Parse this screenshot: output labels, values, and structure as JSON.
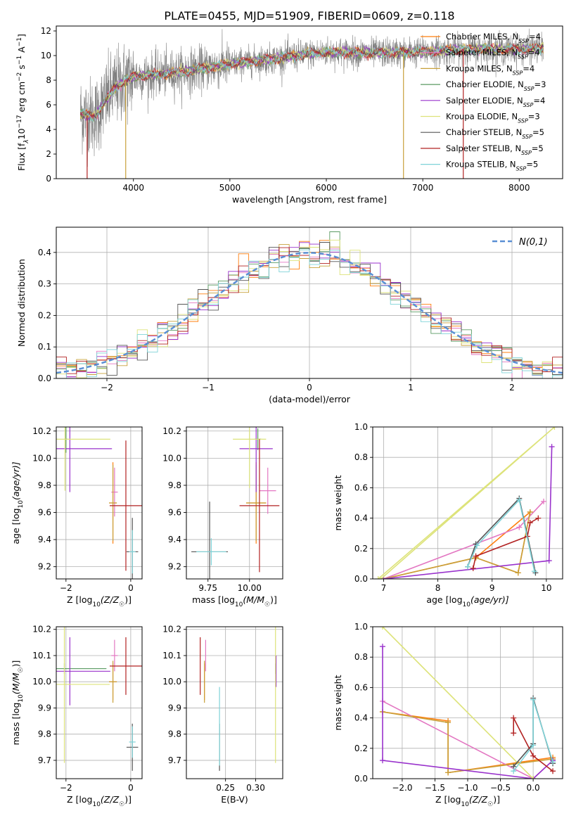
{
  "title": "PLATE=0455, MJD=51909, FIBERID=0609, z=0.118",
  "colors": {
    "axis": "#000000",
    "grid": "#b0b0b0",
    "noise": "#808080",
    "gauss": "#5a8fd4"
  },
  "models": [
    {
      "name": "Chabrier MILES, N$_{SSP}$=4",
      "label_main": "Chabrier MILES, N",
      "label_sub": "SSP",
      "label_tail": "=4",
      "color": "#ff7f0e"
    },
    {
      "name": "Salpeter MILES, N$_{SSP}$=4",
      "label_main": "Salpeter MILES, N",
      "label_sub": "SSP",
      "label_tail": "=4",
      "color": "#e377c2"
    },
    {
      "name": "Kroupa MILES, N$_{SSP}$=4",
      "label_main": "Kroupa MILES, N",
      "label_sub": "SSP",
      "label_tail": "=4",
      "color": "#c8a03a"
    },
    {
      "name": "Chabrier ELODIE, N$_{SSP}$=3",
      "label_main": "Chabrier ELODIE, N",
      "label_sub": "SSP",
      "label_tail": "=3",
      "color": "#5a9a62"
    },
    {
      "name": "Salpeter ELODIE, N$_{SSP}$=4",
      "label_main": "Salpeter ELODIE, N",
      "label_sub": "SSP",
      "label_tail": "=4",
      "color": "#9932cc"
    },
    {
      "name": "Kroupa ELODIE, N$_{SSP}$=3",
      "label_main": "Kroupa ELODIE, N",
      "label_sub": "SSP",
      "label_tail": "=3",
      "color": "#dde37a"
    },
    {
      "name": "Chabrier STELIB, N$_{SSP}$=5",
      "label_main": "Chabrier STELIB, N",
      "label_sub": "SSP",
      "label_tail": "=5",
      "color": "#555555"
    },
    {
      "name": "Salpeter STELIB, N$_{SSP}$=5",
      "label_main": "Salpeter STELIB, N",
      "label_sub": "SSP",
      "label_tail": "=5",
      "color": "#b22222"
    },
    {
      "name": "Kroupa STELIB, N$_{SSP}$=5",
      "label_main": "Kroupa STELIB, N",
      "label_sub": "SSP",
      "label_tail": "=5",
      "color": "#7fd3d8"
    }
  ],
  "chart_data": [
    {
      "id": "spectrum",
      "type": "line",
      "xlabel": "wavelength [Angstrom, rest frame]",
      "ylabel_main": "Flux [f",
      "ylabel_sub": "λ",
      "ylabel_mid": "10",
      "ylabel_exp": "−17",
      "ylabel_tail": " erg cm",
      "ylabel_exp2": "−2",
      "ylabel_tail2": " s",
      "ylabel_exp3": "−1",
      "ylabel_tail3": " A",
      "ylabel_exp4": "−1",
      "ylabel_end": "]",
      "xlim": [
        3200,
        8450
      ],
      "ylim": [
        0,
        12.4
      ],
      "xticks": [
        4000,
        5000,
        6000,
        7000,
        8000
      ],
      "xtick_labels": [
        "4000",
        "5000",
        "6000",
        "7000",
        "8000"
      ],
      "yticks": [
        0,
        2,
        4,
        6,
        8,
        10,
        12
      ],
      "ytick_labels": [
        "0",
        "2",
        "4",
        "6",
        "8",
        "10",
        "12"
      ],
      "continuum": [
        [
          3450,
          5.3
        ],
        [
          3600,
          5.0
        ],
        [
          3700,
          6.2
        ],
        [
          3800,
          7.3
        ],
        [
          3900,
          7.9
        ],
        [
          4000,
          8.3
        ],
        [
          4300,
          8.5
        ],
        [
          4600,
          8.8
        ],
        [
          5000,
          9.3
        ],
        [
          5500,
          9.8
        ],
        [
          6000,
          10.3
        ],
        [
          6500,
          10.2
        ],
        [
          7000,
          10.3
        ],
        [
          7500,
          10.5
        ],
        [
          8000,
          10.5
        ],
        [
          8250,
          10.6
        ]
      ],
      "spikes": [
        3520,
        3920,
        6800,
        7420
      ],
      "legend_loc": "upper right"
    },
    {
      "id": "residuals",
      "type": "histogram",
      "xlabel": "(data-model)/error",
      "ylabel": "Normed distribution",
      "xlim": [
        -2.5,
        2.5
      ],
      "ylim": [
        0,
        0.48
      ],
      "xticks": [
        -2,
        -1,
        0,
        1,
        2
      ],
      "xtick_labels": [
        "−2",
        "−1",
        "0",
        "1",
        "2"
      ],
      "yticks": [
        0.0,
        0.1,
        0.2,
        0.3,
        0.4
      ],
      "ytick_labels": [
        "0.0",
        "0.1",
        "0.2",
        "0.3",
        "0.4"
      ],
      "bin_width": 0.1,
      "legend_label": "N(0,1)",
      "legend_loc": "upper right",
      "grid": true
    },
    {
      "id": "age_vs_z",
      "type": "errorbar",
      "xlabel_main": "Z [log",
      "xlabel_sub": "10",
      "xlabel_tail": "(Z/Z",
      "xlabel_sub2": "☉",
      "xlabel_end": ")]",
      "ylabel_main": "age  [log",
      "ylabel_sub": "10",
      "ylabel_tail": "(age/yr)]",
      "xlim": [
        -2.3,
        0.35
      ],
      "ylim": [
        9.11,
        10.23
      ],
      "xticks": [
        -2,
        0
      ],
      "xtick_labels": [
        "−2",
        "0"
      ],
      "yticks": [
        9.2,
        9.4,
        9.6,
        9.8,
        10.0,
        10.2
      ],
      "ytick_labels": [
        "9.2",
        "9.4",
        "9.6",
        "9.8",
        "10.0",
        "10.2"
      ],
      "points": [
        {
          "m": 0,
          "x": -0.55,
          "y": 9.67,
          "xerr": 0.12,
          "yerr": 0.3
        },
        {
          "m": 1,
          "x": -0.5,
          "y": 9.75,
          "xerr": 0.1,
          "yerr": 0.18
        },
        {
          "m": 2,
          "x": -0.55,
          "y": 9.67,
          "xerr": 0.12,
          "yerr": 0.28
        },
        {
          "m": 3,
          "x": -2.0,
          "y": 10.14,
          "xerr": 0.05,
          "yerr": 0.1
        },
        {
          "m": 4,
          "x": -1.88,
          "y": 10.07,
          "xerr": 1.3,
          "yerr": 0.32
        },
        {
          "m": 5,
          "x": -2.03,
          "y": 10.14,
          "xerr": 1.4,
          "yerr": 0.38
        },
        {
          "m": 6,
          "x": 0.05,
          "y": 9.31,
          "xerr": 0.18,
          "yerr": 0.25
        },
        {
          "m": 7,
          "x": -0.15,
          "y": 9.65,
          "xerr": 0.5,
          "yerr": 0.48
        },
        {
          "m": 8,
          "x": 0.05,
          "y": 9.31,
          "xerr": 0.1,
          "yerr": 0.16
        }
      ],
      "grid": true
    },
    {
      "id": "age_vs_mass",
      "type": "errorbar",
      "xlabel_main": "mass [log",
      "xlabel_sub": "10",
      "xlabel_tail": "(M/M",
      "xlabel_sub2": "☉",
      "xlabel_end": ")]",
      "ylabel_main": "",
      "xlim": [
        9.62,
        10.2
      ],
      "ylim": [
        9.11,
        10.23
      ],
      "xticks": [
        9.75,
        10.0
      ],
      "xtick_labels": [
        "9.75",
        "10.00"
      ],
      "yticks": [
        9.2,
        9.4,
        9.6,
        9.8,
        10.0,
        10.2
      ],
      "ytick_labels": [
        "9.2",
        "9.4",
        "9.6",
        "9.8",
        "10.0",
        "10.2"
      ],
      "points": [
        {
          "m": 0,
          "x": 10.04,
          "y": 9.67,
          "xerr": 0.06,
          "yerr": 0.3
        },
        {
          "m": 1,
          "x": 10.11,
          "y": 9.76,
          "xerr": 0.05,
          "yerr": 0.17
        },
        {
          "m": 2,
          "x": 10.04,
          "y": 9.67,
          "xerr": 0.06,
          "yerr": 0.28
        },
        {
          "m": 3,
          "x": 10.05,
          "y": 10.14,
          "xerr": 0.02,
          "yerr": 0.08
        },
        {
          "m": 4,
          "x": 10.04,
          "y": 10.07,
          "xerr": 0.1,
          "yerr": 0.32
        },
        {
          "m": 5,
          "x": 10.0,
          "y": 10.14,
          "xerr": 0.1,
          "yerr": 0.36
        },
        {
          "m": 6,
          "x": 9.76,
          "y": 9.31,
          "xerr": 0.11,
          "yerr": 0.37
        },
        {
          "m": 7,
          "x": 10.06,
          "y": 9.65,
          "xerr": 0.12,
          "yerr": 0.49
        },
        {
          "m": 8,
          "x": 9.77,
          "y": 9.31,
          "xerr": 0.09,
          "yerr": 0.1
        }
      ],
      "grid": true
    },
    {
      "id": "weight_vs_age",
      "type": "line",
      "xlabel_main": "age  [log",
      "xlabel_sub": "10",
      "xlabel_tail": "(age/yr)]",
      "ylabel": "mass weight",
      "xlim": [
        6.8,
        10.3
      ],
      "ylim": [
        0,
        1.0
      ],
      "xticks": [
        7,
        8,
        9,
        10
      ],
      "xtick_labels": [
        "7",
        "8",
        "9",
        "10"
      ],
      "yticks": [
        0.0,
        0.2,
        0.4,
        0.6,
        0.8,
        1.0
      ],
      "ytick_labels": [
        "0.0",
        "0.2",
        "0.4",
        "0.6",
        "0.8",
        "1.0"
      ],
      "series": [
        {
          "m": 0,
          "points": [
            [
              7.0,
              0.0
            ],
            [
              8.7,
              0.14
            ],
            [
              9.48,
              0.04
            ],
            [
              9.7,
              0.44
            ],
            [
              8.7,
              0.14
            ]
          ]
        },
        {
          "m": 1,
          "points": [
            [
              7.0,
              0.0
            ],
            [
              9.5,
              0.34
            ],
            [
              9.95,
              0.51
            ]
          ]
        },
        {
          "m": 2,
          "points": [
            [
              7.0,
              0.0
            ],
            [
              8.7,
              0.14
            ],
            [
              9.48,
              0.04
            ],
            [
              9.7,
              0.44
            ]
          ]
        },
        {
          "m": 4,
          "points": [
            [
              7.0,
              0.0
            ],
            [
              10.05,
              0.12
            ],
            [
              10.1,
              0.87
            ]
          ]
        },
        {
          "m": 5,
          "points": [
            [
              6.95,
              0.0
            ],
            [
              10.15,
              1.0
            ],
            [
              6.9,
              0.0
            ]
          ]
        },
        {
          "m": 6,
          "points": [
            [
              8.55,
              0.08
            ],
            [
              8.7,
              0.23
            ],
            [
              9.5,
              0.53
            ],
            [
              9.8,
              0.04
            ]
          ]
        },
        {
          "m": 7,
          "points": [
            [
              8.65,
              0.07
            ],
            [
              8.7,
              0.15
            ],
            [
              9.65,
              0.28
            ],
            [
              9.7,
              0.37
            ],
            [
              9.85,
              0.4
            ]
          ]
        },
        {
          "m": 8,
          "points": [
            [
              8.55,
              0.08
            ],
            [
              8.72,
              0.22
            ],
            [
              9.5,
              0.52
            ],
            [
              9.78,
              0.05
            ]
          ]
        }
      ],
      "grid": true
    },
    {
      "id": "mass_vs_z",
      "type": "errorbar",
      "xlabel_main": "Z [log",
      "xlabel_sub": "10",
      "xlabel_tail": "(Z/Z",
      "xlabel_sub2": "☉",
      "xlabel_end": ")]",
      "ylabel_main": "mass [log",
      "ylabel_sub": "10",
      "ylabel_tail": "(M/M",
      "ylabel_sub2": "☉",
      "ylabel_end": ")]",
      "xlim": [
        -2.3,
        0.35
      ],
      "ylim": [
        9.63,
        10.21
      ],
      "xticks": [
        -2,
        0
      ],
      "xtick_labels": [
        "−2",
        "0"
      ],
      "yticks": [
        9.7,
        9.8,
        9.9,
        10.0,
        10.1,
        10.2
      ],
      "ytick_labels": [
        "9.7",
        "9.8",
        "9.9",
        "10.0",
        "10.1",
        "10.2"
      ],
      "points": [
        {
          "m": 0,
          "x": -0.55,
          "y": 10.0,
          "xerr": 0.12,
          "yerr": 0.07
        },
        {
          "m": 1,
          "x": -0.5,
          "y": 10.1,
          "xerr": 0.1,
          "yerr": 0.06
        },
        {
          "m": 2,
          "x": -0.55,
          "y": 10.0,
          "xerr": 0.12,
          "yerr": 0.08
        },
        {
          "m": 3,
          "x": -2.05,
          "y": 10.05,
          "xerr": 1.3,
          "yerr": 0.02
        },
        {
          "m": 4,
          "x": -1.88,
          "y": 10.04,
          "xerr": 1.25,
          "yerr": 0.13
        },
        {
          "m": 5,
          "x": -2.05,
          "y": 9.99,
          "xerr": 1.4,
          "yerr": 0.3
        },
        {
          "m": 6,
          "x": 0.05,
          "y": 9.75,
          "xerr": 0.18,
          "yerr": 0.09
        },
        {
          "m": 7,
          "x": -0.15,
          "y": 10.06,
          "xerr": 0.5,
          "yerr": 0.11
        },
        {
          "m": 8,
          "x": 0.05,
          "y": 9.77,
          "xerr": 0.1,
          "yerr": 0.06
        }
      ],
      "grid": true
    },
    {
      "id": "mass_vs_ebv",
      "type": "errorbar",
      "xlabel": "E(B-V)",
      "xlim": [
        0.185,
        0.345
      ],
      "ylim": [
        9.63,
        10.21
      ],
      "xticks": [
        0.25,
        0.3
      ],
      "xtick_labels": [
        "0.25",
        "0.30"
      ],
      "yticks": [
        9.7,
        9.8,
        9.9,
        10.0,
        10.1,
        10.2
      ],
      "ytick_labels": [
        "9.7",
        "9.8",
        "9.9",
        "10.0",
        "10.1",
        "10.2"
      ],
      "points": [
        {
          "m": 0,
          "x": 0.215,
          "y": 10.0,
          "xerr": 0.0,
          "yerr": 0.07
        },
        {
          "m": 1,
          "x": 0.217,
          "y": 10.1,
          "xerr": 0.0,
          "yerr": 0.06
        },
        {
          "m": 2,
          "x": 0.215,
          "y": 10.0,
          "xerr": 0.0,
          "yerr": 0.08
        },
        {
          "m": 3,
          "x": 0.333,
          "y": 10.05,
          "xerr": 0.0,
          "yerr": 0.02
        },
        {
          "m": 4,
          "x": 0.334,
          "y": 10.04,
          "xerr": 0.0,
          "yerr": 0.06
        },
        {
          "m": 5,
          "x": 0.333,
          "y": 9.99,
          "xerr": 0.0,
          "yerr": 0.3
        },
        {
          "m": 6,
          "x": 0.24,
          "y": 9.75,
          "xerr": 0.0,
          "yerr": 0.09
        },
        {
          "m": 7,
          "x": 0.208,
          "y": 10.06,
          "xerr": 0.0,
          "yerr": 0.11
        },
        {
          "m": 8,
          "x": 0.24,
          "y": 9.83,
          "xerr": 0.0,
          "yerr": 0.15
        }
      ],
      "grid": true
    },
    {
      "id": "weight_vs_z",
      "type": "line",
      "xlabel_main": "Z [log",
      "xlabel_sub": "10",
      "xlabel_tail": "(Z/Z",
      "xlabel_sub2": "☉",
      "xlabel_end": ")]",
      "ylabel": "mass weight",
      "xlim": [
        -2.45,
        0.45
      ],
      "ylim": [
        0,
        1.0
      ],
      "xticks": [
        -2.0,
        -1.5,
        -1.0,
        -0.5,
        0.0
      ],
      "xtick_labels": [
        "−2.0",
        "−1.5",
        "−1.0",
        "−0.5",
        "0.0"
      ],
      "yticks": [
        0.0,
        0.2,
        0.4,
        0.6,
        0.8,
        1.0
      ],
      "ytick_labels": [
        "0.0",
        "0.2",
        "0.4",
        "0.6",
        "0.8",
        "1.0"
      ],
      "series": [
        {
          "m": 0,
          "points": [
            [
              -2.3,
              0.44
            ],
            [
              -1.3,
              0.38
            ],
            [
              -1.3,
              0.04
            ],
            [
              0.3,
              0.14
            ]
          ]
        },
        {
          "m": 1,
          "points": [
            [
              -2.3,
              0.51
            ],
            [
              0.0,
              0.0
            ],
            [
              0.3,
              0.12
            ]
          ]
        },
        {
          "m": 2,
          "points": [
            [
              -2.3,
              0.44
            ],
            [
              -1.3,
              0.37
            ],
            [
              -1.3,
              0.04
            ],
            [
              0.3,
              0.13
            ]
          ]
        },
        {
          "m": 4,
          "points": [
            [
              -2.3,
              0.87
            ],
            [
              -2.3,
              0.12
            ],
            [
              0.0,
              0.0
            ],
            [
              0.3,
              0.12
            ]
          ]
        },
        {
          "m": 5,
          "points": [
            [
              -2.3,
              1.0
            ],
            [
              0.0,
              0.0
            ]
          ]
        },
        {
          "m": 6,
          "points": [
            [
              -0.3,
              0.08
            ],
            [
              0.0,
              0.23
            ],
            [
              0.0,
              0.53
            ],
            [
              0.3,
              0.1
            ]
          ]
        },
        {
          "m": 7,
          "points": [
            [
              -0.3,
              0.3
            ],
            [
              -0.3,
              0.4
            ],
            [
              0.0,
              0.15
            ],
            [
              0.3,
              0.05
            ]
          ]
        },
        {
          "m": 8,
          "points": [
            [
              -0.3,
              0.05
            ],
            [
              0.0,
              0.22
            ],
            [
              0.0,
              0.52
            ],
            [
              0.3,
              0.11
            ]
          ]
        }
      ],
      "grid": true
    }
  ]
}
